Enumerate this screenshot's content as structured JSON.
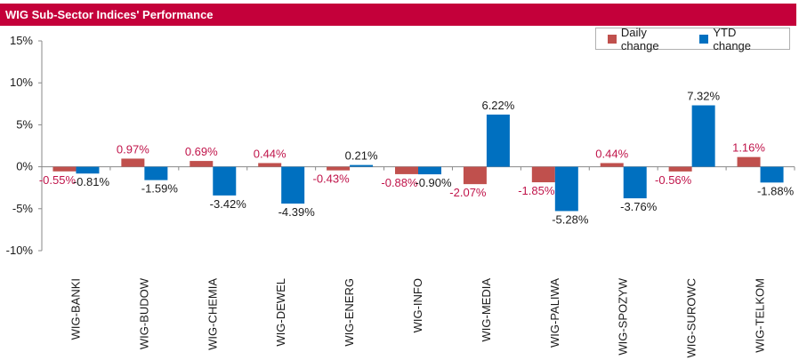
{
  "header": {
    "title": "WIG Sub-Sector Indices' Performance"
  },
  "colors": {
    "daily": "#c0504d",
    "ytd": "#0070c0",
    "daily_label": "#c0144a",
    "ytd_label": "#1a1a1a",
    "title_bg": "#c4003a"
  },
  "chart_data": {
    "type": "bar",
    "title": "WIG Sub-Sector Indices' Performance",
    "xlabel": "",
    "ylabel": "",
    "ylim": [
      -10,
      15
    ],
    "yticks": [
      -10,
      -5,
      0,
      5,
      10,
      15
    ],
    "ytick_labels": [
      "-10%",
      "-5%",
      "0%",
      "5%",
      "10%",
      "15%"
    ],
    "grid": false,
    "legend_position": "top-right",
    "categories": [
      "WIG-BANKI",
      "WIG-BUDOW",
      "WIG-CHEMIA",
      "WIG-DEWEL",
      "WIG-ENERG",
      "WIG-INFO",
      "WIG-MEDIA",
      "WIG-PALIWA",
      "WIG-SPOZYW",
      "WIG-SUROWC",
      "WIG-TELKOM"
    ],
    "series": [
      {
        "name": "Daily change",
        "values": [
          -0.55,
          0.97,
          0.69,
          0.44,
          -0.43,
          -0.88,
          -2.07,
          -1.85,
          0.44,
          -0.56,
          1.16
        ],
        "labels": [
          "-0.55%",
          "0.97%",
          "0.69%",
          "0.44%",
          "-0.43%",
          "-0.88%",
          "-2.07%",
          "-1.85%",
          "0.44%",
          "-0.56%",
          "1.16%"
        ]
      },
      {
        "name": "YTD change",
        "values": [
          -0.81,
          -1.59,
          -3.42,
          -4.39,
          0.21,
          -0.9,
          6.22,
          -5.28,
          -3.76,
          7.32,
          -1.88
        ],
        "labels": [
          "-0.81%",
          "-1.59%",
          "-3.42%",
          "-4.39%",
          "0.21%",
          "-0.90%",
          "6.22%",
          "-5.28%",
          "-3.76%",
          "7.32%",
          "-1.88%"
        ]
      }
    ]
  }
}
